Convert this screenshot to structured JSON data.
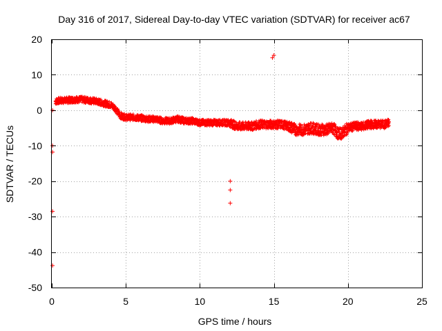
{
  "chart_data": {
    "type": "scatter",
    "title": "Day 316 of 2017, Sidereal Day-to-day VTEC variation (SDTVAR) for receiver ac67",
    "xlabel": "GPS time / hours",
    "ylabel": "SDTVAR / TECUs",
    "xlim": [
      0,
      25
    ],
    "ylim": [
      -50,
      20
    ],
    "xticks": [
      0,
      5,
      10,
      15,
      20,
      25
    ],
    "yticks": [
      20,
      10,
      0,
      -10,
      -20,
      -30,
      -40,
      -50
    ],
    "grid": true,
    "marker": "+",
    "color": "#ff0000",
    "series": [
      {
        "name": "SDTVAR",
        "trace": {
          "x": [
            0.25,
            0.5,
            1.0,
            1.5,
            2.0,
            2.5,
            3.0,
            3.5,
            4.0,
            4.3,
            4.6,
            5.0,
            5.5,
            6.0,
            6.5,
            7.0,
            7.5,
            8.0,
            8.5,
            9.0,
            9.5,
            10.0,
            10.5,
            11.0,
            11.5,
            12.0,
            12.5,
            13.0,
            13.5,
            14.0,
            14.5,
            15.0,
            15.5,
            16.0,
            16.5,
            17.0,
            17.5,
            18.0,
            18.5,
            19.0,
            19.3,
            19.6,
            20.0,
            20.5,
            21.0,
            21.5,
            22.0,
            22.5,
            22.8
          ],
          "y": [
            2.5,
            2.7,
            2.8,
            3.0,
            3.0,
            2.8,
            2.5,
            2.0,
            1.5,
            0.5,
            -1.5,
            -2.0,
            -2.0,
            -2.2,
            -2.5,
            -2.5,
            -3.0,
            -3.0,
            -2.5,
            -3.0,
            -3.0,
            -3.5,
            -3.5,
            -3.5,
            -3.5,
            -3.5,
            -4.5,
            -4.5,
            -4.5,
            -4.0,
            -4.0,
            -4.0,
            -4.0,
            -4.5,
            -5.5,
            -5.5,
            -5.0,
            -5.5,
            -5.5,
            -5.0,
            -6.5,
            -6.5,
            -5.0,
            -4.5,
            -4.5,
            -4.0,
            -4.0,
            -4.0,
            -3.5
          ]
        },
        "outliers": {
          "x": [
            0.05,
            0.05,
            0.05,
            0.05,
            0.05,
            12.05,
            12.05,
            12.05,
            14.9,
            15.0
          ],
          "y": [
            0.0,
            -10.0,
            -11.8,
            -28.5,
            -43.8,
            -20.0,
            -22.5,
            -26.2,
            14.8,
            15.5
          ]
        }
      }
    ]
  }
}
